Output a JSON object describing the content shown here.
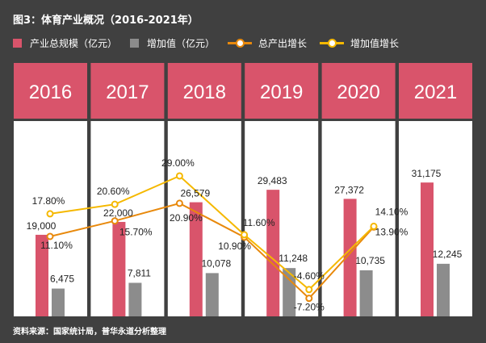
{
  "title": "图3：体育产业概况（2016-2021年）",
  "source": "资料来源：国家统计局，普华永道分析整理",
  "colors": {
    "background": "#404040",
    "scale": "#d9546b",
    "added_value": "#8c8c8c",
    "output_growth": "#e8890c",
    "value_growth": "#f5b800"
  },
  "chart_data": {
    "type": "bar",
    "title": "图3：体育产业概况（2016-2021年）",
    "categories": [
      "2016",
      "2017",
      "2018",
      "2019",
      "2020",
      "2021"
    ],
    "legend_placement": "top",
    "grid": false,
    "series": [
      {
        "name": "产业总规模（亿元）",
        "kind": "bar",
        "values": [
          19000,
          22000,
          26579,
          29483,
          27372,
          31175
        ],
        "labels": [
          "19,000",
          "22,000",
          "26,579",
          "29,483",
          "27,372",
          "31,175"
        ]
      },
      {
        "name": "增加值（亿元）",
        "kind": "bar",
        "values": [
          6475,
          7811,
          10078,
          11248,
          10735,
          12245
        ],
        "labels": [
          "6,475",
          "7,811",
          "10,078",
          "11,248",
          "10,735",
          "12,245"
        ]
      },
      {
        "name": "总产出增长",
        "kind": "line",
        "unit": "%",
        "values": [
          11.1,
          15.7,
          20.9,
          10.9,
          -7.2,
          13.9
        ],
        "labels": [
          "11.10%",
          "15.70%",
          "20.90%",
          "10.90%",
          "-7.20%",
          "13.90%"
        ]
      },
      {
        "name": "增加值增长",
        "kind": "line",
        "unit": "%",
        "values": [
          17.8,
          20.6,
          29.0,
          11.6,
          -4.6,
          14.1
        ],
        "labels": [
          "17.80%",
          "20.60%",
          "29.00%",
          "11.60%",
          "-4.60%",
          "14.10%"
        ]
      }
    ]
  }
}
